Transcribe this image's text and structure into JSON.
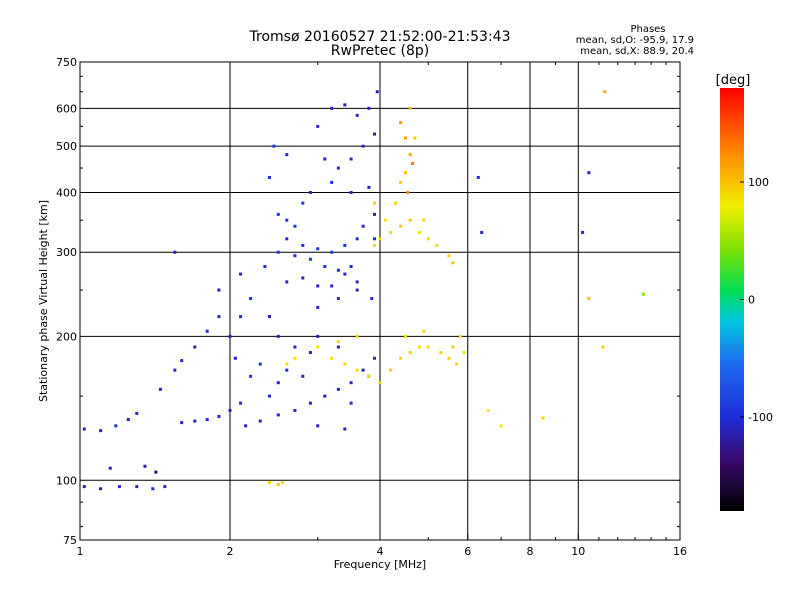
{
  "chart_data": {
    "type": "scatter",
    "title": "Tromsø 20160527 21:52:00-21:53:43",
    "subtitle": "RwPretec (8p)",
    "xlabel": "Frequency [MHz]",
    "ylabel": "Stationary phase Virtual Height [km]",
    "x_scale": "log",
    "y_scale": "log",
    "xlim": [
      1,
      16
    ],
    "ylim": [
      75,
      750
    ],
    "x_ticks": [
      1,
      2,
      4,
      6,
      8,
      10,
      16
    ],
    "x_tick_labels": [
      "1",
      "2",
      "4",
      "6",
      "8",
      "10",
      "16"
    ],
    "y_ticks": [
      75,
      100,
      200,
      300,
      400,
      500,
      600,
      750
    ],
    "y_tick_labels": [
      "75",
      "100",
      "200",
      "300",
      "400",
      "500",
      "600",
      "750"
    ],
    "grid": true,
    "stats": {
      "heading": "Phases",
      "line_o": "mean, sd,O: -95.9, 17.9",
      "line_x": "mean, sd,X:  88.9, 20.4"
    },
    "colorbar": {
      "label": "[deg]",
      "ticks": [
        -100,
        0,
        100
      ],
      "tick_labels": [
        "-100",
        "0",
        "100"
      ],
      "range": [
        -180,
        180
      ]
    },
    "series": [
      {
        "mode": "O",
        "points": [
          [
            1.02,
            97,
            -110
          ],
          [
            1.1,
            96,
            -112
          ],
          [
            1.2,
            97,
            -108
          ],
          [
            1.3,
            97,
            -115
          ],
          [
            1.4,
            96,
            -105
          ],
          [
            1.48,
            97,
            -110
          ],
          [
            1.02,
            128,
            -105
          ],
          [
            1.1,
            127,
            -110
          ],
          [
            1.18,
            130,
            -100
          ],
          [
            1.25,
            134,
            -112
          ],
          [
            1.3,
            138,
            -108
          ],
          [
            1.15,
            106,
            -120
          ],
          [
            1.35,
            107,
            -118
          ],
          [
            1.42,
            104,
            -140
          ],
          [
            1.45,
            155,
            -110
          ],
          [
            1.55,
            170,
            -105
          ],
          [
            1.6,
            178,
            -112
          ],
          [
            1.7,
            190,
            -108
          ],
          [
            1.8,
            205,
            -100
          ],
          [
            1.9,
            220,
            -106
          ],
          [
            1.55,
            300,
            -110
          ],
          [
            1.6,
            132,
            -112
          ],
          [
            1.7,
            133,
            -108
          ],
          [
            1.8,
            134,
            -105
          ],
          [
            1.9,
            136,
            -110
          ],
          [
            2.0,
            140,
            -112
          ],
          [
            2.1,
            145,
            -108
          ],
          [
            2.2,
            165,
            -100
          ],
          [
            2.3,
            175,
            -95
          ],
          [
            2.4,
            150,
            -105
          ],
          [
            2.5,
            160,
            -110
          ],
          [
            2.6,
            170,
            -100
          ],
          [
            2.8,
            165,
            -105
          ],
          [
            2.0,
            200,
            -110
          ],
          [
            2.1,
            220,
            -105
          ],
          [
            2.2,
            240,
            -100
          ],
          [
            2.1,
            270,
            -108
          ],
          [
            1.9,
            250,
            -112
          ],
          [
            2.05,
            180,
            -110
          ],
          [
            2.15,
            130,
            -112
          ],
          [
            2.3,
            133,
            -110
          ],
          [
            2.5,
            137,
            -108
          ],
          [
            2.7,
            140,
            -105
          ],
          [
            2.9,
            145,
            -110
          ],
          [
            3.1,
            150,
            -112
          ],
          [
            3.3,
            155,
            -105
          ],
          [
            3.5,
            160,
            -108
          ],
          [
            3.7,
            170,
            -110
          ],
          [
            3.9,
            180,
            -105
          ],
          [
            3.0,
            130,
            -110
          ],
          [
            3.4,
            128,
            -108
          ],
          [
            2.4,
            430,
            -100
          ],
          [
            2.5,
            360,
            -95
          ],
          [
            2.6,
            350,
            -98
          ],
          [
            2.7,
            340,
            -92
          ],
          [
            2.8,
            380,
            -95
          ],
          [
            2.9,
            400,
            -100
          ],
          [
            2.5,
            300,
            -95
          ],
          [
            2.7,
            295,
            -100
          ],
          [
            2.9,
            290,
            -92
          ],
          [
            3.1,
            280,
            -98
          ],
          [
            3.3,
            275,
            -100
          ],
          [
            3.5,
            280,
            -105
          ],
          [
            2.6,
            320,
            -102
          ],
          [
            2.8,
            310,
            -96
          ],
          [
            3.0,
            305,
            -100
          ],
          [
            3.2,
            300,
            -94
          ],
          [
            3.4,
            310,
            -98
          ],
          [
            3.6,
            320,
            -100
          ],
          [
            2.6,
            260,
            -105
          ],
          [
            2.8,
            265,
            -108
          ],
          [
            3.0,
            255,
            -110
          ],
          [
            3.2,
            255,
            -105
          ],
          [
            3.4,
            270,
            -108
          ],
          [
            3.6,
            260,
            -110
          ],
          [
            3.0,
            550,
            -108
          ],
          [
            3.2,
            600,
            -110
          ],
          [
            3.4,
            610,
            -112
          ],
          [
            3.6,
            580,
            -105
          ],
          [
            3.8,
            600,
            -108
          ],
          [
            3.95,
            650,
            -112
          ],
          [
            3.1,
            470,
            -110
          ],
          [
            3.3,
            450,
            -106
          ],
          [
            3.5,
            470,
            -108
          ],
          [
            3.7,
            500,
            -105
          ],
          [
            3.9,
            530,
            -112
          ],
          [
            3.2,
            420,
            -104
          ],
          [
            3.5,
            400,
            -100
          ],
          [
            3.8,
            410,
            -106
          ],
          [
            3.9,
            360,
            -110
          ],
          [
            3.7,
            340,
            -105
          ],
          [
            3.0,
            230,
            -112
          ],
          [
            3.3,
            240,
            -108
          ],
          [
            3.6,
            250,
            -110
          ],
          [
            3.85,
            240,
            -106
          ],
          [
            3.9,
            320,
            -102
          ],
          [
            2.45,
            500,
            -98
          ],
          [
            2.6,
            480,
            -100
          ],
          [
            2.35,
            280,
            -104
          ],
          [
            2.4,
            220,
            -108
          ],
          [
            2.5,
            200,
            -110
          ],
          [
            3.0,
            200,
            -112
          ],
          [
            3.3,
            190,
            -115
          ],
          [
            2.9,
            185,
            -110
          ],
          [
            2.7,
            190,
            -108
          ],
          [
            3.5,
            145,
            -105
          ],
          [
            3.8,
            165,
            -108
          ],
          [
            10.5,
            440,
            -110
          ],
          [
            10.2,
            330,
            -105
          ],
          [
            6.3,
            430,
            -100
          ],
          [
            6.4,
            330,
            -104
          ]
        ]
      },
      {
        "mode": "X",
        "points": [
          [
            3.9,
            380,
            90
          ],
          [
            4.1,
            350,
            85
          ],
          [
            4.3,
            380,
            92
          ],
          [
            4.4,
            420,
            95
          ],
          [
            4.5,
            440,
            100
          ],
          [
            4.6,
            480,
            110
          ],
          [
            4.5,
            520,
            115
          ],
          [
            4.4,
            560,
            120
          ],
          [
            4.6,
            600,
            100
          ],
          [
            4.7,
            520,
            95
          ],
          [
            4.65,
            460,
            130
          ],
          [
            4.55,
            400,
            125
          ],
          [
            3.9,
            310,
            85
          ],
          [
            4.0,
            320,
            90
          ],
          [
            4.2,
            330,
            88
          ],
          [
            4.4,
            340,
            92
          ],
          [
            4.6,
            350,
            95
          ],
          [
            4.8,
            330,
            85
          ],
          [
            4.9,
            350,
            90
          ],
          [
            5.0,
            320,
            88
          ],
          [
            5.2,
            310,
            85
          ],
          [
            5.5,
            295,
            92
          ],
          [
            5.6,
            285,
            95
          ],
          [
            3.2,
            180,
            85
          ],
          [
            3.4,
            175,
            90
          ],
          [
            3.6,
            170,
            88
          ],
          [
            3.8,
            165,
            85
          ],
          [
            4.0,
            160,
            92
          ],
          [
            4.2,
            170,
            95
          ],
          [
            4.4,
            180,
            90
          ],
          [
            4.6,
            185,
            92
          ],
          [
            4.8,
            190,
            88
          ],
          [
            5.0,
            190,
            85
          ],
          [
            5.3,
            185,
            90
          ],
          [
            5.6,
            190,
            92
          ],
          [
            5.8,
            200,
            88
          ],
          [
            5.9,
            185,
            85
          ],
          [
            5.7,
            175,
            90
          ],
          [
            5.5,
            180,
            95
          ],
          [
            4.5,
            200,
            90
          ],
          [
            4.9,
            205,
            92
          ],
          [
            3.0,
            190,
            85
          ],
          [
            3.3,
            195,
            88
          ],
          [
            3.6,
            200,
            90
          ],
          [
            2.7,
            180,
            85
          ],
          [
            2.6,
            175,
            88
          ],
          [
            2.4,
            99,
            90
          ],
          [
            2.5,
            98,
            92
          ],
          [
            2.55,
            99,
            88
          ],
          [
            6.6,
            140,
            80
          ],
          [
            7.0,
            130,
            85
          ],
          [
            8.5,
            135,
            90
          ],
          [
            11.3,
            650,
            110
          ],
          [
            11.2,
            190,
            95
          ],
          [
            13.5,
            245,
            45
          ],
          [
            10.5,
            240,
            100
          ]
        ]
      }
    ]
  }
}
